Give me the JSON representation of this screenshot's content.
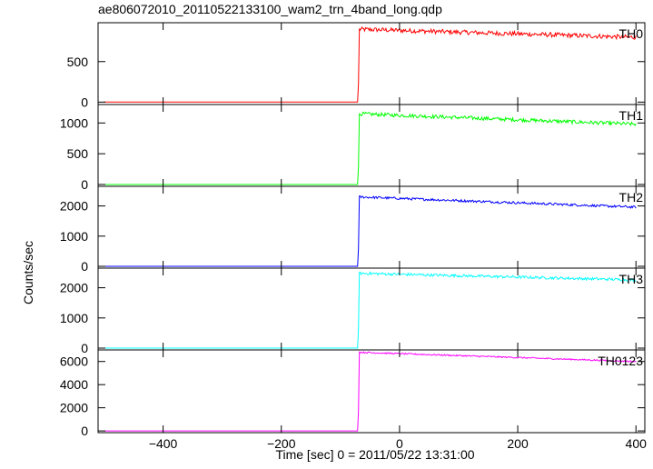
{
  "title": "ae806072010_20110522133100_wam2_trn_4band_long.qdp",
  "ylabel": "Counts/sec",
  "xlabel": "Time [sec] 0 = 2011/05/22 13:31:00",
  "chart_data": {
    "type": "line",
    "title": "ae806072010_20110522133100_wam2_trn_4band_long.qdp",
    "xlabel": "Time [sec] 0 = 2011/05/22 13:31:00",
    "ylabel": "Counts/sec",
    "xlim": [
      -510,
      415
    ],
    "xticks": [
      -400,
      -200,
      0,
      200,
      400
    ],
    "xtick_labels": [
      "−400",
      "−200",
      "0",
      "200",
      "400"
    ],
    "trigger_time": -70,
    "x_start": -500,
    "x_end": 400,
    "panels": [
      {
        "name": "TH0",
        "color": "#ff0000",
        "ylim": [
          -30,
          980
        ],
        "yticks": [
          0,
          500
        ],
        "pre_level": 0,
        "peak": 900,
        "end_level": 800,
        "noise": 28
      },
      {
        "name": "TH1",
        "color": "#00ff00",
        "ylim": [
          -30,
          1300
        ],
        "yticks": [
          0,
          500,
          1000
        ],
        "pre_level": 0,
        "peak": 1150,
        "end_level": 980,
        "noise": 30
      },
      {
        "name": "TH2",
        "color": "#0000ff",
        "ylim": [
          -60,
          2650
        ],
        "yticks": [
          0,
          1000,
          2000
        ],
        "pre_level": 0,
        "peak": 2300,
        "end_level": 1960,
        "noise": 40
      },
      {
        "name": "TH3",
        "color": "#00ffff",
        "ylim": [
          -60,
          2650
        ],
        "yticks": [
          0,
          1000,
          2000
        ],
        "pre_level": 0,
        "peak": 2480,
        "end_level": 2260,
        "noise": 45
      },
      {
        "name": "TH0123",
        "color": "#ff00ff",
        "ylim": [
          -150,
          7000
        ],
        "yticks": [
          0,
          2000,
          4000,
          6000
        ],
        "pre_level": 0,
        "peak": 6800,
        "end_level": 6000,
        "noise": 60
      }
    ]
  }
}
